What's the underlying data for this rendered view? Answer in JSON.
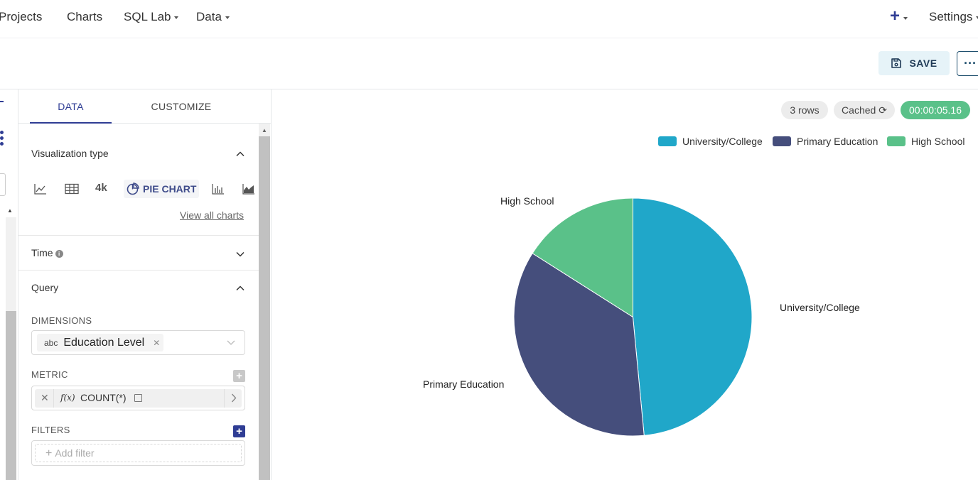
{
  "nav": {
    "items": [
      {
        "label": "Projects",
        "has_caret": false
      },
      {
        "label": "Charts",
        "has_caret": false
      },
      {
        "label": "SQL Lab",
        "has_caret": true
      },
      {
        "label": "Data",
        "has_caret": true
      }
    ],
    "settings_label": "Settings"
  },
  "header": {
    "save_label": "SAVE",
    "more_label": "···"
  },
  "panel": {
    "tabs": [
      {
        "label": "DATA",
        "active": true
      },
      {
        "label": "CUSTOMIZE",
        "active": false
      }
    ],
    "viz_section": {
      "title": "Visualization type",
      "four_k_label": "4k",
      "selected_label": "PIE CHART",
      "view_all_label": "View all charts"
    },
    "time_section": {
      "title": "Time"
    },
    "query_section": {
      "title": "Query"
    },
    "dimensions": {
      "label": "DIMENSIONS",
      "tag_type": "abc",
      "tag_value": "Education Level"
    },
    "metric": {
      "label": "METRIC",
      "fx": "f(x)",
      "value": "COUNT(*)"
    },
    "filters": {
      "label": "FILTERS",
      "placeholder": "Add filter"
    }
  },
  "status": {
    "rows": "3 rows",
    "cached": "Cached",
    "timer": "00:00:05.16"
  },
  "chart_data": {
    "type": "pie",
    "series": [
      {
        "name": "University/College",
        "value": 0.485,
        "color": "#20a7c9"
      },
      {
        "name": "Primary Education",
        "value": 0.355,
        "color": "#454e7c"
      },
      {
        "name": "High School",
        "value": 0.16,
        "color": "#5ac189"
      }
    ],
    "legend_position": "top-right"
  },
  "colors": {
    "accent": "#2f3d94",
    "success": "#5ac189"
  }
}
